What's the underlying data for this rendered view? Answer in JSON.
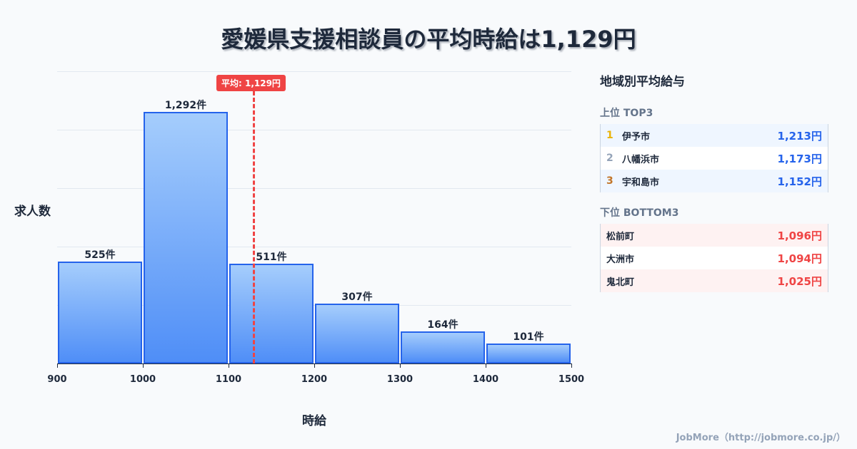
{
  "title": "愛媛県支援相談員の平均時給は1,129円",
  "chart_data": {
    "type": "bar",
    "title": "愛媛県支援相談員の平均時給は1,129円",
    "xlabel": "時給",
    "ylabel": "求人数",
    "bin_edges": [
      900,
      1000,
      1100,
      1200,
      1300,
      1400,
      1500
    ],
    "categories": [
      "900-1000",
      "1000-1100",
      "1100-1200",
      "1200-1300",
      "1300-1400",
      "1400-1500"
    ],
    "values": [
      525,
      1292,
      511,
      307,
      164,
      101
    ],
    "value_labels": [
      "525件",
      "1,292件",
      "511件",
      "307件",
      "164件",
      "101件"
    ],
    "x_ticks": [
      "900",
      "1000",
      "1100",
      "1200",
      "1300",
      "1400",
      "1500"
    ],
    "ylim": [
      0,
      1500
    ],
    "grid": true,
    "average": {
      "value": 1129,
      "label": "平均: 1,129円",
      "color": "#ef4444"
    },
    "bar_color": "#2563eb"
  },
  "panel": {
    "title": "地域別平均給与",
    "top_title": "上位 TOP3",
    "top": [
      {
        "rank": "1",
        "name": "伊予市",
        "value": "1,213円",
        "rank_color": "#eab308"
      },
      {
        "rank": "2",
        "name": "八幡浜市",
        "value": "1,173円",
        "rank_color": "#94a3b8"
      },
      {
        "rank": "3",
        "name": "宇和島市",
        "value": "1,152円",
        "rank_color": "#c2762a"
      }
    ],
    "bottom_title": "下位 BOTTOM3",
    "bottom": [
      {
        "name": "松前町",
        "value": "1,096円"
      },
      {
        "name": "大洲市",
        "value": "1,094円"
      },
      {
        "name": "鬼北町",
        "value": "1,025円"
      }
    ]
  },
  "footer": "JobMore（http://jobmore.co.jp/）"
}
